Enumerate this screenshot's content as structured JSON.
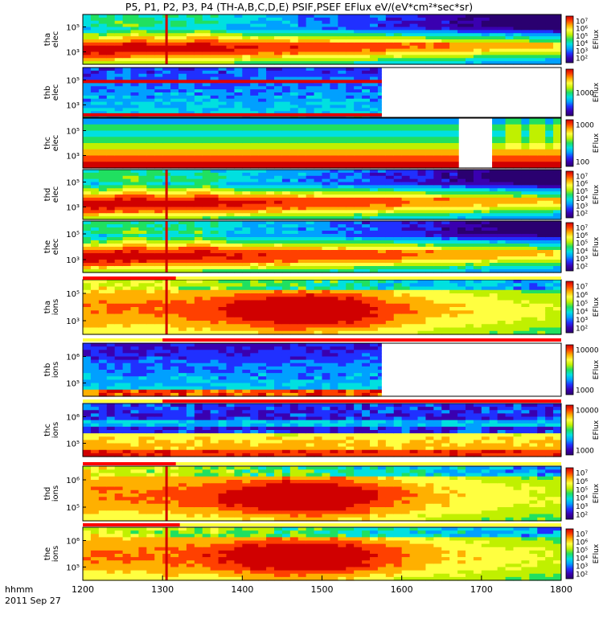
{
  "title": "P5, P1, P2, P3, P4 (TH-A,B,C,D,E) PSIF,PSEF EFlux eV/(eV*cm²*sec*sr)",
  "time_label_1": "hhmm",
  "time_label_2": "2011 Sep 27",
  "chart_data": {
    "type": "heatmap",
    "x": {
      "label": "hhmm",
      "date": "2011 Sep 27",
      "ticks": [
        "1200",
        "1300",
        "1400",
        "1500",
        "1600",
        "1700",
        "1800"
      ]
    },
    "panels": [
      {
        "label": [
          "tha",
          "elec"
        ],
        "yticks": [
          "10⁵",
          "10³"
        ],
        "colorbar": {
          "label": "EFlux",
          "ticks": [
            "10⁷",
            "10⁶",
            "10⁵",
            "10⁴",
            "10³",
            "10²"
          ]
        },
        "style": "elec",
        "data_end_hhmm": "1800"
      },
      {
        "label": [
          "thb",
          "elec"
        ],
        "yticks": [
          "10⁵",
          "10³"
        ],
        "colorbar": {
          "label": "EFlux",
          "ticks": [
            "1000"
          ]
        },
        "style": "thb-elec",
        "data_end_hhmm": "1545"
      },
      {
        "label": [
          "thc",
          "elec"
        ],
        "yticks": [
          "10⁵",
          "10³"
        ],
        "colorbar": {
          "label": "EFlux",
          "ticks": [
            "1000",
            "100"
          ]
        },
        "style": "thc-elec",
        "data_end_hhmm": "1800"
      },
      {
        "label": [
          "thd",
          "elec"
        ],
        "yticks": [
          "10⁵",
          "10³"
        ],
        "colorbar": {
          "label": "EFlux",
          "ticks": [
            "10⁷",
            "10⁶",
            "10⁵",
            "10⁴",
            "10³",
            "10²"
          ]
        },
        "style": "elec",
        "data_end_hhmm": "1800"
      },
      {
        "label": [
          "the",
          "elec"
        ],
        "yticks": [
          "10⁵",
          "10³"
        ],
        "colorbar": {
          "label": "EFlux",
          "ticks": [
            "10⁷",
            "10⁶",
            "10⁵",
            "10⁴",
            "10³",
            "10²"
          ]
        },
        "style": "elec",
        "data_end_hhmm": "1800"
      },
      {
        "label": [
          "tha",
          "ions"
        ],
        "yticks": [
          "10⁵",
          "10³"
        ],
        "colorbar": {
          "label": "EFlux",
          "ticks": [
            "10⁷",
            "10⁶",
            "10⁵",
            "10⁴",
            "10³",
            "10²"
          ]
        },
        "style": "ions",
        "data_end_hhmm": "1800"
      },
      {
        "label": [
          "thb",
          "ions"
        ],
        "yticks": [
          "10⁶",
          "10⁵"
        ],
        "colorbar": {
          "label": "EFlux",
          "ticks": [
            "10000",
            "1000"
          ]
        },
        "style": "thb-ions",
        "data_end_hhmm": "1545"
      },
      {
        "label": [
          "thc",
          "ions"
        ],
        "yticks": [
          "10⁶",
          "10⁵"
        ],
        "colorbar": {
          "label": "EFlux",
          "ticks": [
            "10000",
            "1000"
          ]
        },
        "style": "thc-ions",
        "data_end_hhmm": "1800"
      },
      {
        "label": [
          "thd",
          "ions"
        ],
        "yticks": [
          "10⁶",
          "10⁵"
        ],
        "colorbar": {
          "label": "EFlux",
          "ticks": [
            "10⁷",
            "10⁶",
            "10⁵",
            "10⁴",
            "10³",
            "10²"
          ]
        },
        "style": "ions",
        "data_end_hhmm": "1800"
      },
      {
        "label": [
          "the",
          "ions"
        ],
        "yticks": [
          "10⁶",
          "10⁵"
        ],
        "colorbar": {
          "label": "EFlux",
          "ticks": [
            "10⁷",
            "10⁶",
            "10⁵",
            "10⁴",
            "10³",
            "10²"
          ]
        },
        "style": "ions",
        "data_end_hhmm": "1800"
      }
    ],
    "vertical_marker_hhmm": "1303",
    "status_bars": [
      {
        "red_until_hhmm": "1310"
      },
      {
        "red_from_hhmm": "1300"
      },
      {
        "red_from_hhmm": "1300"
      },
      {
        "red_until_hhmm": "1310"
      },
      {
        "red_until_hhmm": "1313"
      }
    ],
    "colormap": [
      "#2a0070",
      "#3a00b0",
      "#2030ff",
      "#00a0ff",
      "#00e0e0",
      "#20e060",
      "#c0f000",
      "#ffff40",
      "#ffb000",
      "#ff4000",
      "#d00000"
    ]
  }
}
